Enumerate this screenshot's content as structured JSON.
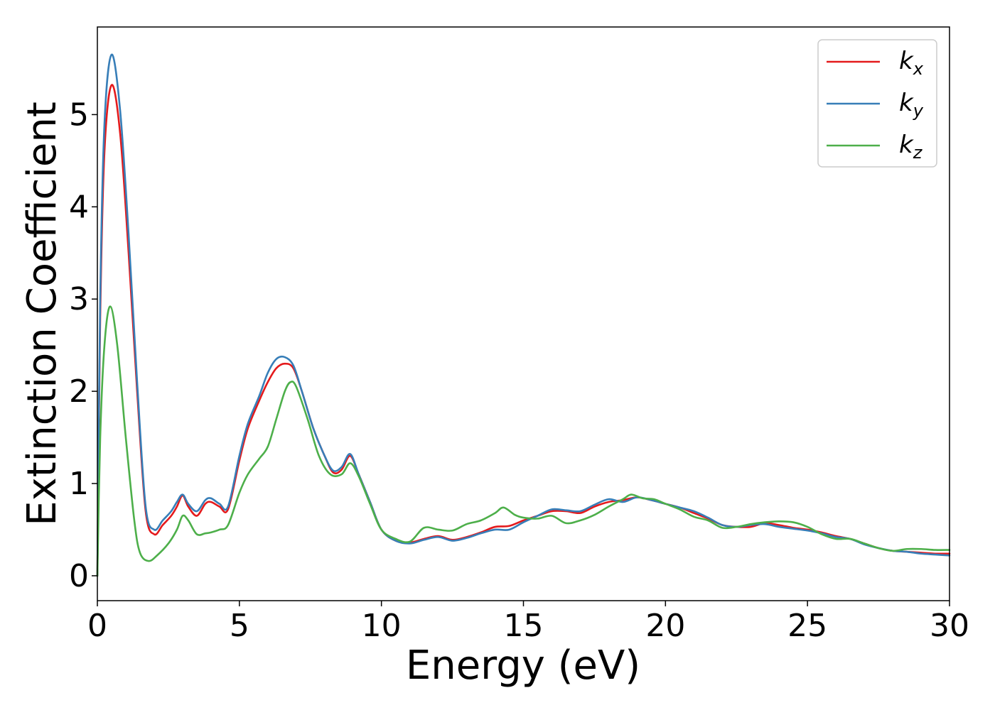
{
  "chart_data": {
    "type": "line",
    "xlabel": "Energy (eV)",
    "ylabel": "Extinction Coefficient",
    "xlim": [
      0,
      30
    ],
    "ylim": [
      -0.27,
      5.95
    ],
    "xticks": [
      "0",
      "5",
      "10",
      "15",
      "20",
      "25",
      "30"
    ],
    "yticks": [
      "0",
      "1",
      "2",
      "3",
      "4",
      "5"
    ],
    "grid": false,
    "legend_position": "top-right",
    "series": [
      {
        "name": "k_x",
        "label_main": "k",
        "label_sub": "x",
        "color": "#e41a1c",
        "x": [
          0,
          0.1,
          0.25,
          0.5,
          0.8,
          1.1,
          1.4,
          1.7,
          2.0,
          2.3,
          2.6,
          2.8,
          3.0,
          3.2,
          3.5,
          3.8,
          4.0,
          4.3,
          4.6,
          5.0,
          5.3,
          5.7,
          6.0,
          6.3,
          6.6,
          6.9,
          7.2,
          7.6,
          8.0,
          8.3,
          8.6,
          8.9,
          9.2,
          9.6,
          10.0,
          10.5,
          11.0,
          11.5,
          12.0,
          12.5,
          13.0,
          13.5,
          14.0,
          14.5,
          15.0,
          15.5,
          16.0,
          16.5,
          17.0,
          17.5,
          18.0,
          18.5,
          19.0,
          19.5,
          20.0,
          20.5,
          21.0,
          21.5,
          22.0,
          22.5,
          23.0,
          23.5,
          24.0,
          24.5,
          25.0,
          25.5,
          26.0,
          26.5,
          27.0,
          27.5,
          28.0,
          28.5,
          29.0,
          29.5,
          30.0
        ],
        "values": [
          0.0,
          2.8,
          4.6,
          5.32,
          4.8,
          3.5,
          2.0,
          0.7,
          0.45,
          0.55,
          0.65,
          0.75,
          0.87,
          0.75,
          0.65,
          0.78,
          0.8,
          0.75,
          0.72,
          1.25,
          1.6,
          1.9,
          2.1,
          2.25,
          2.3,
          2.25,
          2.0,
          1.6,
          1.3,
          1.12,
          1.15,
          1.3,
          1.1,
          0.8,
          0.5,
          0.38,
          0.36,
          0.4,
          0.43,
          0.39,
          0.42,
          0.47,
          0.53,
          0.54,
          0.6,
          0.65,
          0.7,
          0.7,
          0.68,
          0.75,
          0.8,
          0.82,
          0.85,
          0.82,
          0.78,
          0.74,
          0.68,
          0.62,
          0.55,
          0.53,
          0.53,
          0.57,
          0.55,
          0.52,
          0.5,
          0.47,
          0.43,
          0.4,
          0.35,
          0.3,
          0.27,
          0.26,
          0.25,
          0.24,
          0.24
        ]
      },
      {
        "name": "k_y",
        "label_main": "k",
        "label_sub": "y",
        "color": "#377eb8",
        "x": [
          0,
          0.1,
          0.25,
          0.5,
          0.8,
          1.1,
          1.4,
          1.7,
          2.0,
          2.3,
          2.6,
          2.8,
          3.0,
          3.2,
          3.5,
          3.8,
          4.0,
          4.3,
          4.6,
          5.0,
          5.3,
          5.7,
          6.0,
          6.3,
          6.6,
          6.9,
          7.2,
          7.6,
          8.0,
          8.3,
          8.6,
          8.9,
          9.2,
          9.6,
          10.0,
          10.5,
          11.0,
          11.5,
          12.0,
          12.5,
          13.0,
          13.5,
          14.0,
          14.5,
          15.0,
          15.5,
          16.0,
          16.5,
          17.0,
          17.5,
          18.0,
          18.5,
          19.0,
          19.5,
          20.0,
          20.5,
          21.0,
          21.5,
          22.0,
          22.5,
          23.0,
          23.5,
          24.0,
          24.5,
          25.0,
          25.5,
          26.0,
          26.5,
          27.0,
          27.5,
          28.0,
          28.5,
          29.0,
          29.5,
          30.0
        ],
        "values": [
          0.0,
          3.0,
          4.9,
          5.65,
          5.05,
          3.7,
          2.1,
          0.75,
          0.5,
          0.6,
          0.7,
          0.8,
          0.88,
          0.78,
          0.7,
          0.82,
          0.84,
          0.78,
          0.75,
          1.3,
          1.65,
          1.95,
          2.2,
          2.35,
          2.37,
          2.28,
          2.0,
          1.6,
          1.3,
          1.14,
          1.18,
          1.32,
          1.1,
          0.8,
          0.5,
          0.38,
          0.35,
          0.39,
          0.42,
          0.38,
          0.41,
          0.46,
          0.5,
          0.5,
          0.58,
          0.65,
          0.72,
          0.71,
          0.7,
          0.77,
          0.83,
          0.8,
          0.85,
          0.82,
          0.78,
          0.74,
          0.7,
          0.63,
          0.55,
          0.53,
          0.55,
          0.56,
          0.53,
          0.51,
          0.49,
          0.46,
          0.42,
          0.4,
          0.34,
          0.3,
          0.27,
          0.26,
          0.24,
          0.23,
          0.22
        ]
      },
      {
        "name": "k_z",
        "label_main": "k",
        "label_sub": "z",
        "color": "#4daf4a",
        "x": [
          0,
          0.1,
          0.25,
          0.45,
          0.7,
          1.0,
          1.3,
          1.5,
          1.8,
          2.1,
          2.5,
          2.8,
          3.0,
          3.2,
          3.5,
          3.8,
          4.0,
          4.3,
          4.6,
          5.0,
          5.3,
          5.7,
          6.0,
          6.3,
          6.6,
          6.8,
          7.0,
          7.4,
          7.8,
          8.2,
          8.6,
          8.9,
          9.2,
          9.6,
          10.0,
          10.5,
          11.0,
          11.5,
          12.0,
          12.5,
          13.0,
          13.5,
          14.0,
          14.3,
          14.7,
          15.0,
          15.5,
          16.0,
          16.5,
          17.0,
          17.5,
          18.0,
          18.5,
          18.8,
          19.2,
          19.6,
          20.0,
          20.5,
          21.0,
          21.5,
          22.0,
          22.5,
          23.0,
          23.5,
          24.0,
          24.5,
          25.0,
          25.5,
          26.0,
          26.5,
          27.0,
          27.5,
          28.0,
          28.5,
          29.0,
          29.5,
          30.0
        ],
        "values": [
          0.0,
          1.5,
          2.5,
          2.92,
          2.5,
          1.5,
          0.6,
          0.25,
          0.16,
          0.22,
          0.35,
          0.5,
          0.65,
          0.6,
          0.45,
          0.46,
          0.47,
          0.5,
          0.55,
          0.9,
          1.1,
          1.27,
          1.4,
          1.7,
          2.0,
          2.1,
          2.05,
          1.7,
          1.3,
          1.1,
          1.1,
          1.22,
          1.08,
          0.78,
          0.5,
          0.4,
          0.37,
          0.52,
          0.5,
          0.49,
          0.56,
          0.6,
          0.68,
          0.74,
          0.66,
          0.63,
          0.62,
          0.65,
          0.57,
          0.6,
          0.66,
          0.75,
          0.83,
          0.88,
          0.84,
          0.83,
          0.78,
          0.72,
          0.64,
          0.6,
          0.52,
          0.53,
          0.56,
          0.58,
          0.59,
          0.58,
          0.53,
          0.45,
          0.4,
          0.4,
          0.35,
          0.3,
          0.27,
          0.29,
          0.29,
          0.28,
          0.28
        ]
      }
    ]
  }
}
